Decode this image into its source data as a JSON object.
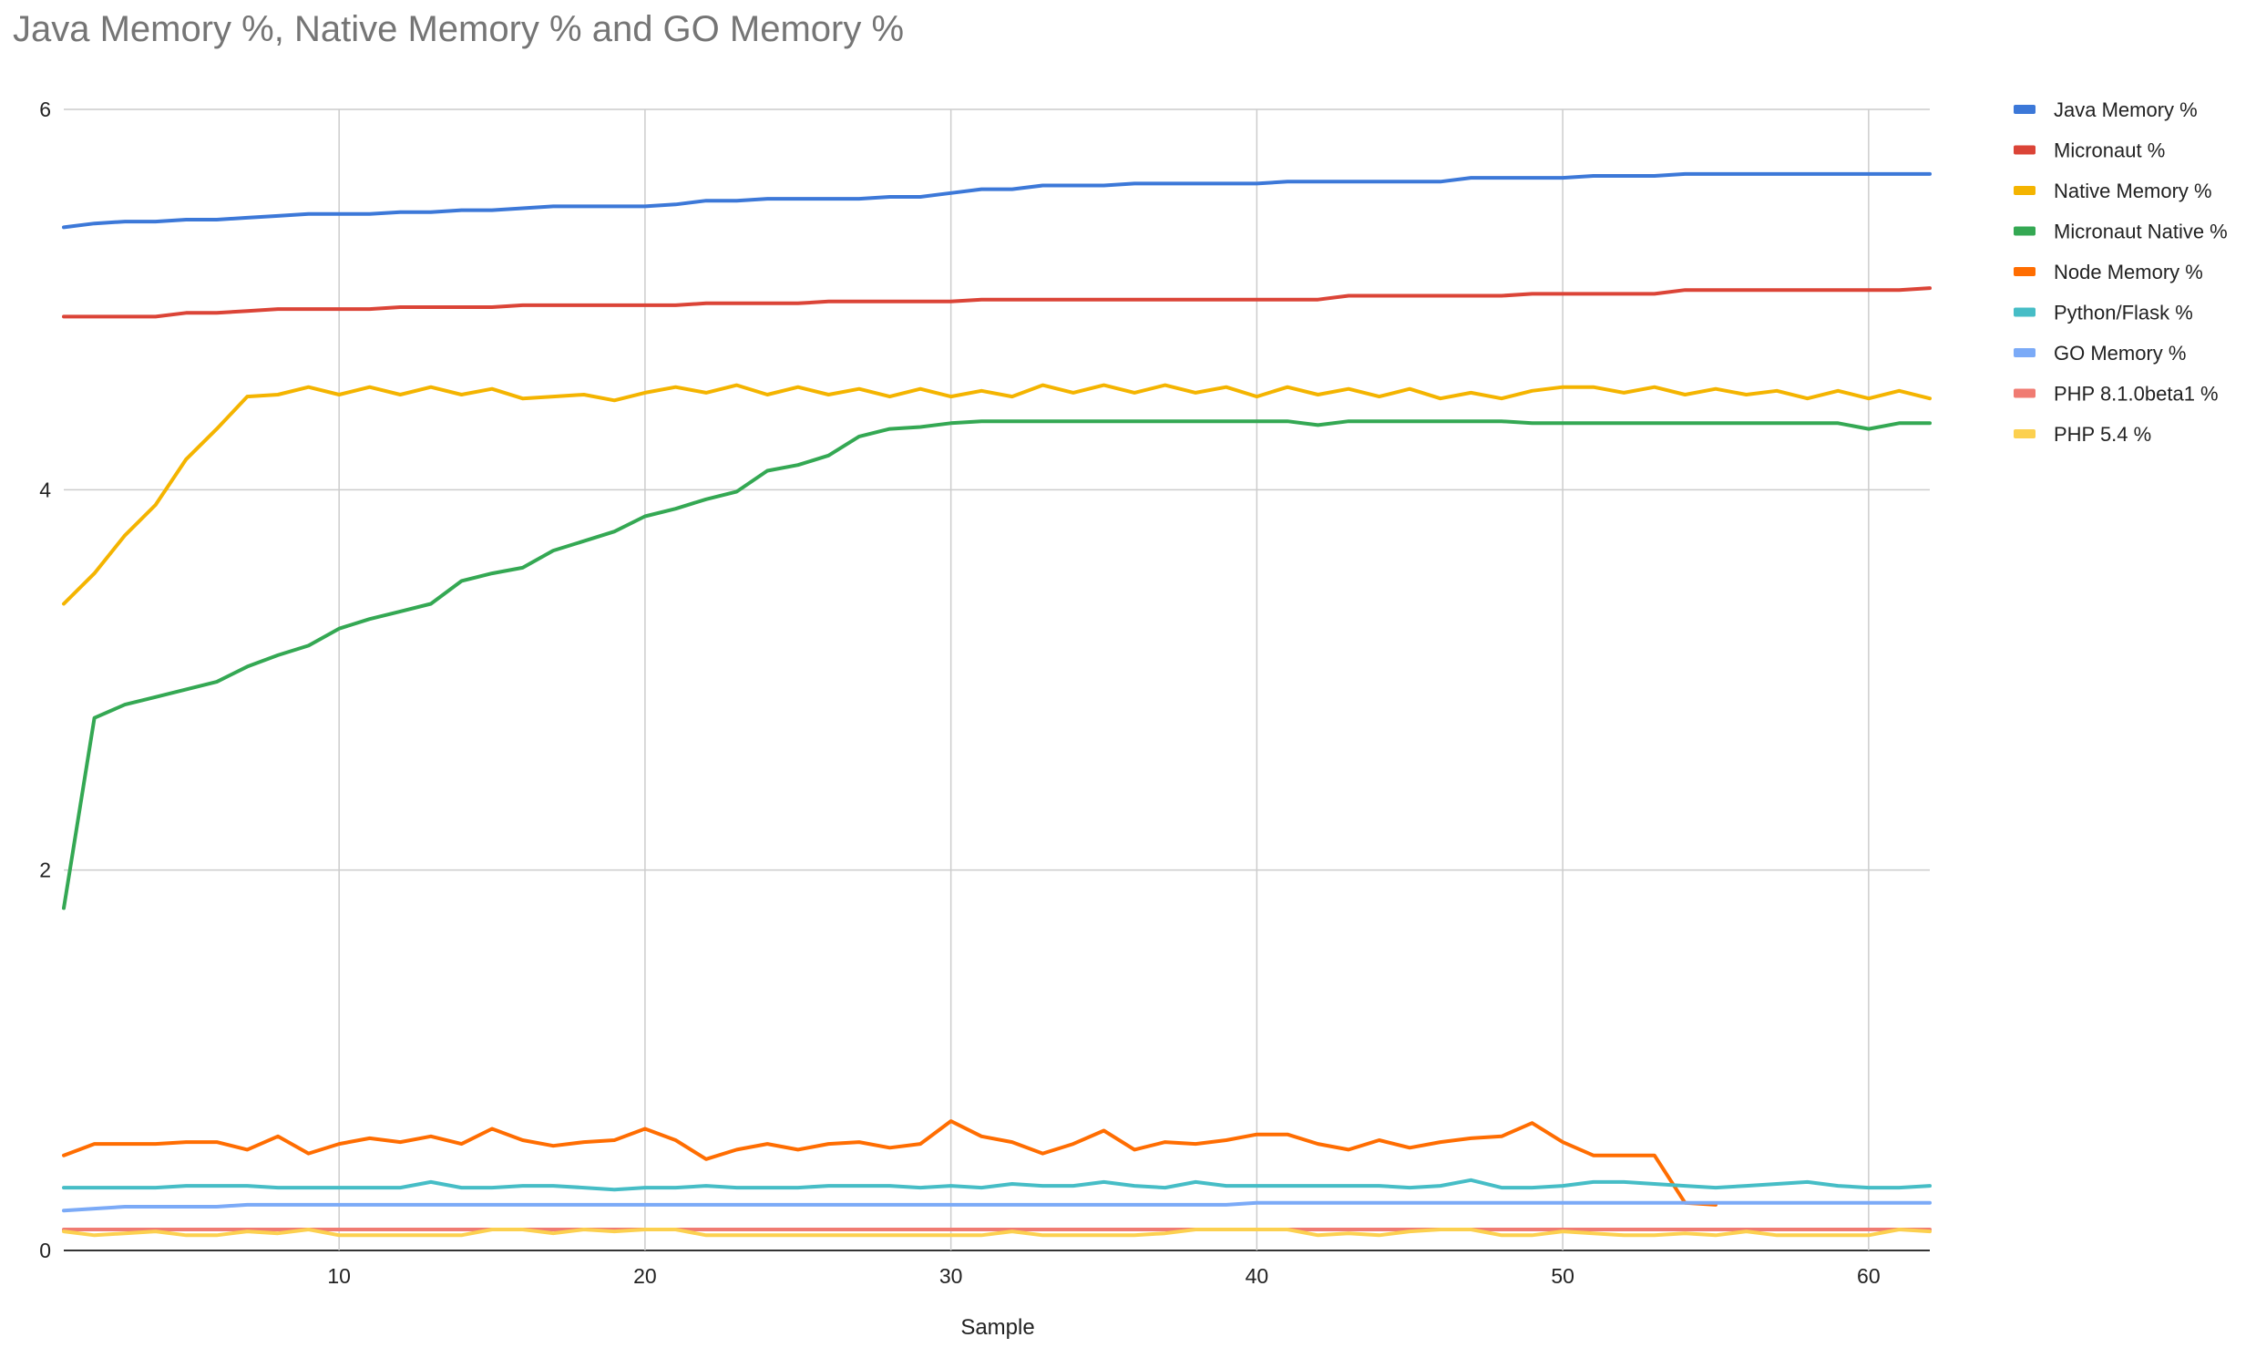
{
  "chart_data": {
    "type": "line",
    "title": "Java Memory %, Native Memory % and GO Memory %",
    "xlabel": "Sample",
    "ylabel": "",
    "xlim": [
      1,
      62
    ],
    "ylim": [
      0,
      6
    ],
    "xticks": [
      10,
      20,
      30,
      40,
      50,
      60
    ],
    "yticks": [
      0,
      2,
      4,
      6
    ],
    "grid": true,
    "legend_position": "right",
    "x": [
      1,
      2,
      3,
      4,
      5,
      6,
      7,
      8,
      9,
      10,
      11,
      12,
      13,
      14,
      15,
      16,
      17,
      18,
      19,
      20,
      21,
      22,
      23,
      24,
      25,
      26,
      27,
      28,
      29,
      30,
      31,
      32,
      33,
      34,
      35,
      36,
      37,
      38,
      39,
      40,
      41,
      42,
      43,
      44,
      45,
      46,
      47,
      48,
      49,
      50,
      51,
      52,
      53,
      54,
      55,
      56,
      57,
      58,
      59,
      60,
      61,
      62
    ],
    "series": [
      {
        "name": "Java Memory %",
        "color": "#3c78d8",
        "values": [
          5.38,
          5.4,
          5.41,
          5.41,
          5.42,
          5.42,
          5.43,
          5.44,
          5.45,
          5.45,
          5.45,
          5.46,
          5.46,
          5.47,
          5.47,
          5.48,
          5.49,
          5.49,
          5.49,
          5.49,
          5.5,
          5.52,
          5.52,
          5.53,
          5.53,
          5.53,
          5.53,
          5.54,
          5.54,
          5.56,
          5.58,
          5.58,
          5.6,
          5.6,
          5.6,
          5.61,
          5.61,
          5.61,
          5.61,
          5.61,
          5.62,
          5.62,
          5.62,
          5.62,
          5.62,
          5.62,
          5.64,
          5.64,
          5.64,
          5.64,
          5.65,
          5.65,
          5.65,
          5.66,
          5.66,
          5.66,
          5.66,
          5.66,
          5.66,
          5.66,
          5.66,
          5.66
        ]
      },
      {
        "name": "Micronaut %",
        "color": "#db4437",
        "values": [
          4.91,
          4.91,
          4.91,
          4.91,
          4.93,
          4.93,
          4.94,
          4.95,
          4.95,
          4.95,
          4.95,
          4.96,
          4.96,
          4.96,
          4.96,
          4.97,
          4.97,
          4.97,
          4.97,
          4.97,
          4.97,
          4.98,
          4.98,
          4.98,
          4.98,
          4.99,
          4.99,
          4.99,
          4.99,
          4.99,
          5.0,
          5.0,
          5.0,
          5.0,
          5.0,
          5.0,
          5.0,
          5.0,
          5.0,
          5.0,
          5.0,
          5.0,
          5.02,
          5.02,
          5.02,
          5.02,
          5.02,
          5.02,
          5.03,
          5.03,
          5.03,
          5.03,
          5.03,
          5.05,
          5.05,
          5.05,
          5.05,
          5.05,
          5.05,
          5.05,
          5.05,
          5.06
        ]
      },
      {
        "name": "Native Memory %",
        "color": "#f4b400",
        "values": [
          3.4,
          3.56,
          3.76,
          3.92,
          4.16,
          4.32,
          4.49,
          4.5,
          4.54,
          4.5,
          4.54,
          4.5,
          4.54,
          4.5,
          4.53,
          4.48,
          4.49,
          4.5,
          4.47,
          4.51,
          4.54,
          4.51,
          4.55,
          4.5,
          4.54,
          4.5,
          4.53,
          4.49,
          4.53,
          4.49,
          4.52,
          4.49,
          4.55,
          4.51,
          4.55,
          4.51,
          4.55,
          4.51,
          4.54,
          4.49,
          4.54,
          4.5,
          4.53,
          4.49,
          4.53,
          4.48,
          4.51,
          4.48,
          4.52,
          4.54,
          4.54,
          4.51,
          4.54,
          4.5,
          4.53,
          4.5,
          4.52,
          4.48,
          4.52,
          4.48,
          4.52,
          4.48
        ]
      },
      {
        "name": "Micronaut Native %",
        "color": "#34a853",
        "values": [
          1.8,
          2.8,
          2.87,
          2.91,
          2.95,
          2.99,
          3.07,
          3.13,
          3.18,
          3.27,
          3.32,
          3.36,
          3.4,
          3.52,
          3.56,
          3.59,
          3.68,
          3.73,
          3.78,
          3.86,
          3.9,
          3.95,
          3.99,
          4.1,
          4.13,
          4.18,
          4.28,
          4.32,
          4.33,
          4.35,
          4.36,
          4.36,
          4.36,
          4.36,
          4.36,
          4.36,
          4.36,
          4.36,
          4.36,
          4.36,
          4.36,
          4.34,
          4.36,
          4.36,
          4.36,
          4.36,
          4.36,
          4.36,
          4.35,
          4.35,
          4.35,
          4.35,
          4.35,
          4.35,
          4.35,
          4.35,
          4.35,
          4.35,
          4.35,
          4.32,
          4.35,
          4.35
        ]
      },
      {
        "name": "Node Memory %",
        "color": "#ff6d01",
        "values": [
          0.5,
          0.56,
          0.56,
          0.56,
          0.57,
          0.57,
          0.53,
          0.6,
          0.51,
          0.56,
          0.59,
          0.57,
          0.6,
          0.56,
          0.64,
          0.58,
          0.55,
          0.57,
          0.58,
          0.64,
          0.58,
          0.48,
          0.53,
          0.56,
          0.53,
          0.56,
          0.57,
          0.54,
          0.56,
          0.68,
          0.6,
          0.57,
          0.51,
          0.56,
          0.63,
          0.53,
          0.57,
          0.56,
          0.58,
          0.61,
          0.61,
          0.56,
          0.53,
          0.58,
          0.54,
          0.57,
          0.59,
          0.6,
          0.67,
          0.57,
          0.5,
          0.5,
          0.5,
          0.25,
          0.24,
          null,
          null,
          null,
          null,
          null,
          null,
          null
        ]
      },
      {
        "name": "Python/Flask %",
        "color": "#46bdc6",
        "values": [
          0.33,
          0.33,
          0.33,
          0.33,
          0.34,
          0.34,
          0.34,
          0.33,
          0.33,
          0.33,
          0.33,
          0.33,
          0.36,
          0.33,
          0.33,
          0.34,
          0.34,
          0.33,
          0.32,
          0.33,
          0.33,
          0.34,
          0.33,
          0.33,
          0.33,
          0.34,
          0.34,
          0.34,
          0.33,
          0.34,
          0.33,
          0.35,
          0.34,
          0.34,
          0.36,
          0.34,
          0.33,
          0.36,
          0.34,
          0.34,
          0.34,
          0.34,
          0.34,
          0.34,
          0.33,
          0.34,
          0.37,
          0.33,
          0.33,
          0.34,
          0.36,
          0.36,
          0.35,
          0.34,
          0.33,
          0.34,
          0.35,
          0.36,
          0.34,
          0.33,
          0.33,
          0.34
        ]
      },
      {
        "name": "GO Memory %",
        "color": "#7baaf7",
        "values": [
          0.21,
          0.22,
          0.23,
          0.23,
          0.23,
          0.23,
          0.24,
          0.24,
          0.24,
          0.24,
          0.24,
          0.24,
          0.24,
          0.24,
          0.24,
          0.24,
          0.24,
          0.24,
          0.24,
          0.24,
          0.24,
          0.24,
          0.24,
          0.24,
          0.24,
          0.24,
          0.24,
          0.24,
          0.24,
          0.24,
          0.24,
          0.24,
          0.24,
          0.24,
          0.24,
          0.24,
          0.24,
          0.24,
          0.24,
          0.25,
          0.25,
          0.25,
          0.25,
          0.25,
          0.25,
          0.25,
          0.25,
          0.25,
          0.25,
          0.25,
          0.25,
          0.25,
          0.25,
          0.25,
          0.25,
          0.25,
          0.25,
          0.25,
          0.25,
          0.25,
          0.25,
          0.25
        ]
      },
      {
        "name": "PHP 8.1.0beta1 %",
        "color": "#f07b72",
        "values": [
          0.11,
          0.11,
          0.11,
          0.11,
          0.11,
          0.11,
          0.11,
          0.11,
          0.11,
          0.11,
          0.11,
          0.11,
          0.11,
          0.11,
          0.11,
          0.11,
          0.11,
          0.11,
          0.11,
          0.11,
          0.11,
          0.11,
          0.11,
          0.11,
          0.11,
          0.11,
          0.11,
          0.11,
          0.11,
          0.11,
          0.11,
          0.11,
          0.11,
          0.11,
          0.11,
          0.11,
          0.11,
          0.11,
          0.11,
          0.11,
          0.11,
          0.11,
          0.11,
          0.11,
          0.11,
          0.11,
          0.11,
          0.11,
          0.11,
          0.11,
          0.11,
          0.11,
          0.11,
          0.11,
          0.11,
          0.11,
          0.11,
          0.11,
          0.11,
          0.11,
          0.11,
          0.11
        ]
      },
      {
        "name": "PHP 5.4 %",
        "color": "#fcd04f",
        "values": [
          0.1,
          0.08,
          0.09,
          0.1,
          0.08,
          0.08,
          0.1,
          0.09,
          0.11,
          0.08,
          0.08,
          0.08,
          0.08,
          0.08,
          0.11,
          0.11,
          0.09,
          0.11,
          0.1,
          0.11,
          0.11,
          0.08,
          0.08,
          0.08,
          0.08,
          0.08,
          0.08,
          0.08,
          0.08,
          0.08,
          0.08,
          0.1,
          0.08,
          0.08,
          0.08,
          0.08,
          0.09,
          0.11,
          0.11,
          0.11,
          0.11,
          0.08,
          0.09,
          0.08,
          0.1,
          0.11,
          0.11,
          0.08,
          0.08,
          0.1,
          0.09,
          0.08,
          0.08,
          0.09,
          0.08,
          0.1,
          0.08,
          0.08,
          0.08,
          0.08,
          0.11,
          0.1
        ]
      }
    ]
  }
}
